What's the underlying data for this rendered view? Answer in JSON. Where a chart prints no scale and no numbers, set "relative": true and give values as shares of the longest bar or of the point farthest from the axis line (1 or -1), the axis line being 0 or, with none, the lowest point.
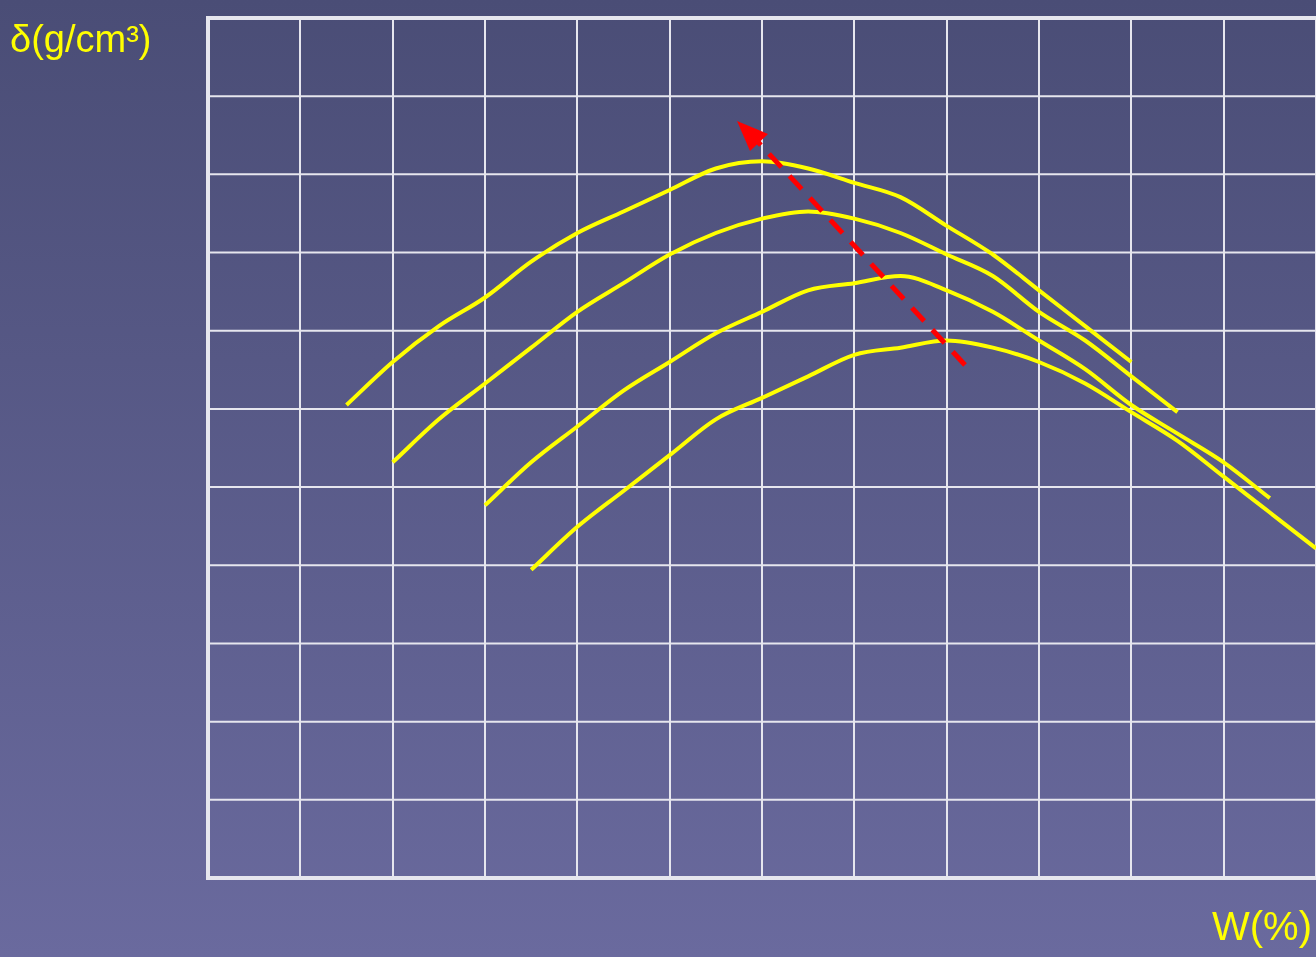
{
  "chart_data": {
    "type": "line",
    "relative": true,
    "ylabel": "δ(g/cm³)",
    "xlabel": "W(%)",
    "grid": true,
    "legend": false,
    "marker": "none",
    "line_style": "solid",
    "categories": [
      null,
      null,
      null,
      null,
      null,
      null,
      null,
      null,
      null,
      null,
      null,
      null,
      null,
      null,
      null,
      null,
      null,
      null,
      null,
      null,
      null,
      null,
      null,
      null,
      null
    ],
    "series": [
      {
        "color": "#ffff00",
        "values": [
          null,
          null,
          null,
          0.66,
          0.72,
          0.77,
          0.81,
          0.86,
          0.9,
          0.93,
          0.96,
          0.99,
          1,
          0.99,
          0.97,
          0.95,
          0.91,
          0.87,
          0.82,
          0.77,
          0.72,
          null,
          null,
          null,
          null
        ]
      },
      {
        "color": "#ffff00",
        "values": [
          null,
          null,
          null,
          null,
          0.58,
          0.64,
          0.69,
          0.74,
          0.79,
          0.83,
          0.87,
          0.9,
          0.92,
          0.93,
          0.92,
          0.9,
          0.87,
          0.84,
          0.79,
          0.75,
          0.7,
          0.65,
          null,
          null,
          null
        ]
      },
      {
        "color": "#ffff00",
        "values": [
          null,
          null,
          null,
          null,
          null,
          null,
          0.52,
          0.58,
          0.63,
          0.68,
          0.72,
          0.76,
          0.79,
          0.82,
          0.83,
          0.84,
          0.82,
          0.79,
          0.75,
          0.71,
          0.66,
          0.62,
          0.58,
          0.53,
          null
        ]
      },
      {
        "color": "#ffff00",
        "values": [
          null,
          null,
          null,
          null,
          null,
          null,
          null,
          0.43,
          0.49,
          0.54,
          0.59,
          0.64,
          0.67,
          0.7,
          0.73,
          0.74,
          0.75,
          0.74,
          0.72,
          0.69,
          0.65,
          0.61,
          0.56,
          0.51,
          0.46
        ]
      }
    ]
  }
}
